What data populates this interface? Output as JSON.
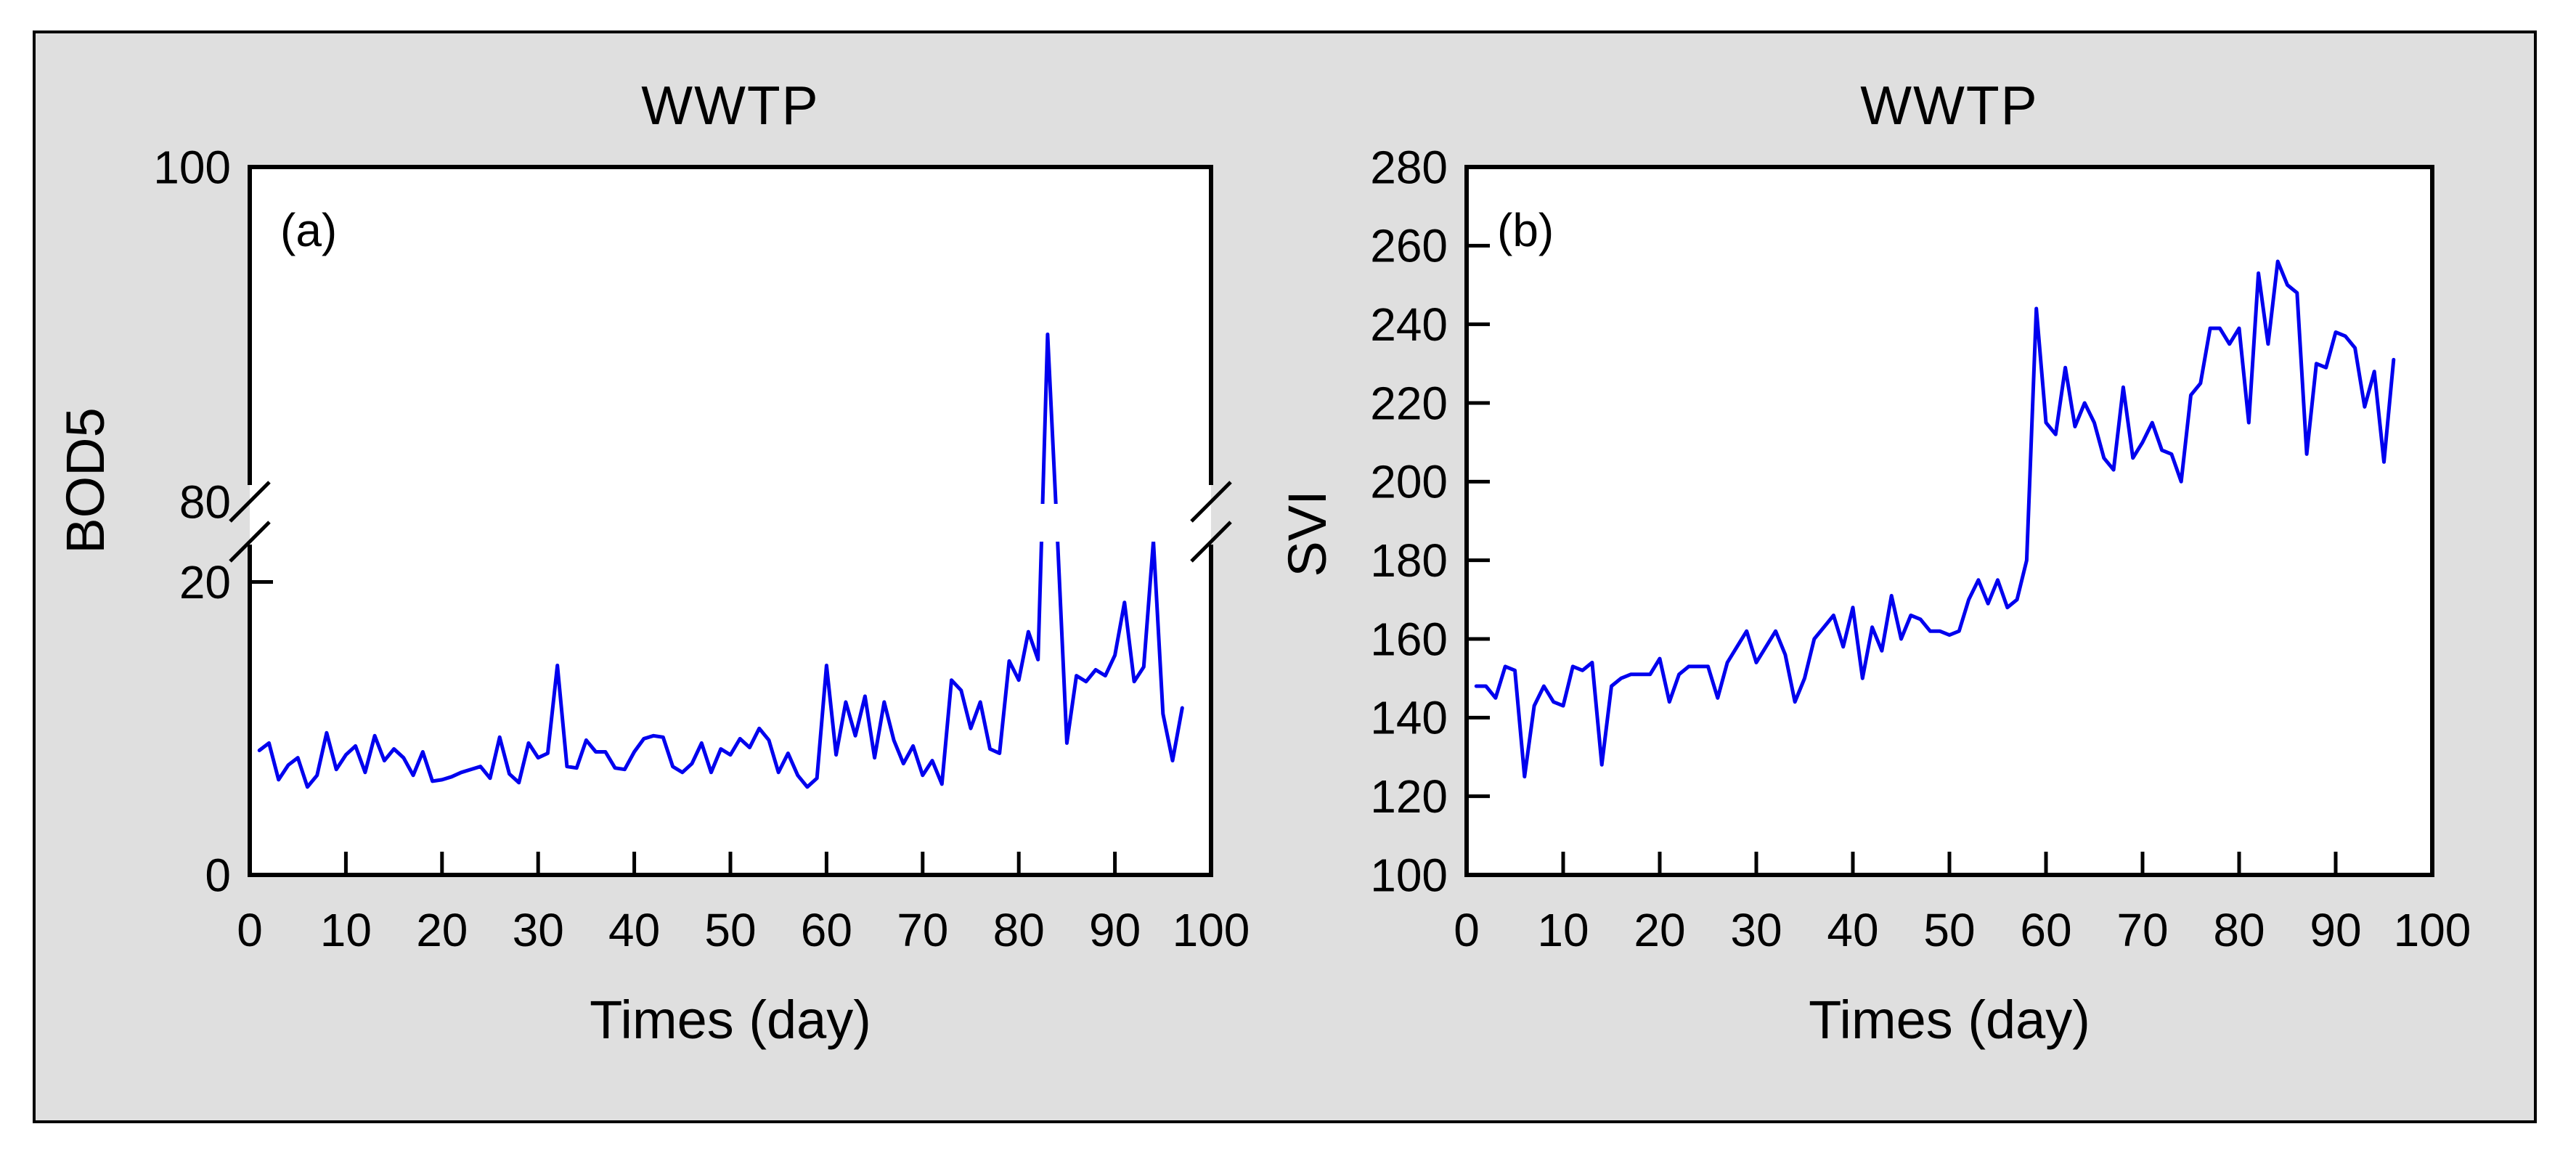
{
  "figure": {
    "outer_background": "#ffffff",
    "panel_background": "#dfdfdf",
    "plot_background": "#ffffff",
    "frame_color": "#000000",
    "text_color": "#000000",
    "line_color": "#0000ee"
  },
  "chart_data": [
    {
      "type": "line",
      "panel_label": "(a)",
      "title": "WWTP",
      "xlabel": "Times (day)",
      "ylabel": "BOD5",
      "xlim": [
        0,
        100
      ],
      "x_ticks": [
        0,
        10,
        20,
        30,
        40,
        50,
        60,
        70,
        80,
        90,
        100
      ],
      "y_ticks": [
        {
          "value": 0,
          "label": "0"
        },
        {
          "value": 20,
          "label": "20"
        },
        {
          "value": 80,
          "label": "80"
        },
        {
          "value": 100,
          "label": "100"
        }
      ],
      "y_axis_break": {
        "lower_range": [
          0,
          22.7
        ],
        "upper_range": [
          80,
          100
        ],
        "symbol": "double-slash"
      },
      "grid": false,
      "legend": "none",
      "series": [
        {
          "name": "BOD5",
          "color": "#0000ee",
          "x_start_day": 1,
          "values": [
            8.5,
            9,
            6.5,
            7.5,
            8,
            6,
            6.8,
            9.7,
            7.2,
            8.2,
            8.8,
            7,
            9.5,
            7.8,
            8.6,
            8,
            6.8,
            8.4,
            6.4,
            6.5,
            6.7,
            7,
            7.2,
            7.4,
            6.6,
            9.4,
            6.9,
            6.3,
            9,
            8,
            8.3,
            14.3,
            7.4,
            7.3,
            9.2,
            8.4,
            8.4,
            7.3,
            7.2,
            8.4,
            9.3,
            9.5,
            9.4,
            7.4,
            7,
            7.6,
            9,
            7,
            8.6,
            8.2,
            9.3,
            8.7,
            10,
            9.2,
            7,
            8.3,
            6.8,
            6,
            6.6,
            14.3,
            8.2,
            11.8,
            9.5,
            12.2,
            8,
            11.8,
            9.2,
            7.6,
            8.8,
            6.8,
            7.8,
            6.2,
            13.3,
            12.6,
            10,
            11.8,
            8.6,
            8.3,
            14.6,
            13.3,
            16.6,
            14.7,
            90,
            35,
            9,
            13.6,
            13.2,
            14,
            13.6,
            15,
            18.6,
            13.2,
            14.2,
            24.5,
            11,
            7.8,
            11.4
          ]
        }
      ]
    },
    {
      "type": "line",
      "panel_label": "(b)",
      "title": "WWTP",
      "xlabel": "Times (day)",
      "ylabel": "SVI",
      "xlim": [
        0,
        100
      ],
      "ylim": [
        100,
        280
      ],
      "x_ticks": [
        0,
        10,
        20,
        30,
        40,
        50,
        60,
        70,
        80,
        90,
        100
      ],
      "y_ticks": [
        {
          "value": 100,
          "label": "100"
        },
        {
          "value": 120,
          "label": "120"
        },
        {
          "value": 140,
          "label": "140"
        },
        {
          "value": 160,
          "label": "160"
        },
        {
          "value": 180,
          "label": "180"
        },
        {
          "value": 200,
          "label": "200"
        },
        {
          "value": 220,
          "label": "220"
        },
        {
          "value": 240,
          "label": "240"
        },
        {
          "value": 260,
          "label": "260"
        },
        {
          "value": 280,
          "label": "280"
        }
      ],
      "grid": false,
      "legend": "none",
      "series": [
        {
          "name": "SVI",
          "color": "#0000ee",
          "x_start_day": 1,
          "values": [
            148,
            148,
            145,
            153,
            152,
            125,
            143,
            148,
            144,
            143,
            153,
            152,
            154,
            128,
            148,
            150,
            151,
            151,
            151,
            155,
            144,
            151,
            153,
            153,
            153,
            145,
            154,
            158,
            162,
            154,
            158,
            162,
            156,
            144,
            150,
            160,
            163,
            166,
            158,
            168,
            150,
            163,
            157,
            171,
            160,
            166,
            165,
            162,
            162,
            161,
            162,
            170,
            175,
            169,
            175,
            168,
            170,
            180,
            244,
            215,
            212,
            229,
            214,
            220,
            215,
            206,
            203,
            224,
            206,
            210,
            215,
            208,
            207,
            200,
            222,
            225,
            239,
            239,
            235,
            239,
            215,
            253,
            235,
            256,
            250,
            248,
            207,
            230,
            229,
            238,
            237,
            234,
            219,
            228,
            205,
            231
          ]
        }
      ]
    }
  ]
}
